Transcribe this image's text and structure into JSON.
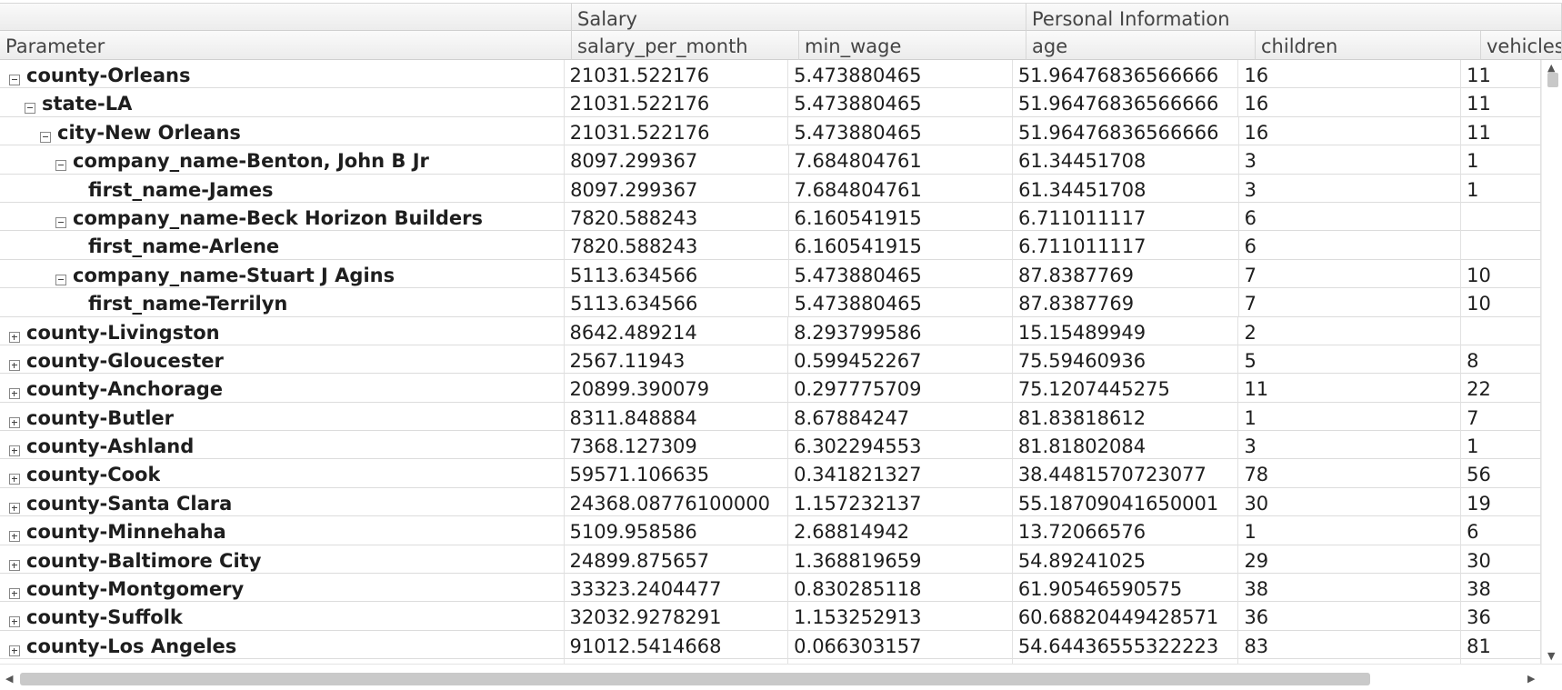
{
  "headers": {
    "groups": [
      {
        "label": "",
        "width": 629
      },
      {
        "label": "Salary",
        "width": 500
      },
      {
        "label": "Personal Information",
        "width": 589
      }
    ],
    "columns": [
      {
        "label": "Parameter",
        "width": 629
      },
      {
        "label": "salary_per_month",
        "width": 250
      },
      {
        "label": "min_wage",
        "width": 250
      },
      {
        "label": "age",
        "width": 252
      },
      {
        "label": "children",
        "width": 248
      },
      {
        "label": "vehicles",
        "width": 89
      }
    ]
  },
  "rows": [
    {
      "label": "county-Orleans",
      "level": 0,
      "toggle": "minus",
      "values": [
        "21031.522176",
        "5.473880465",
        "51.96476836566666",
        "16",
        "11"
      ]
    },
    {
      "label": "state-LA",
      "level": 1,
      "toggle": "minus",
      "values": [
        "21031.522176",
        "5.473880465",
        "51.96476836566666",
        "16",
        "11"
      ]
    },
    {
      "label": "city-New Orleans",
      "level": 2,
      "toggle": "minus",
      "values": [
        "21031.522176",
        "5.473880465",
        "51.96476836566666",
        "16",
        "11"
      ]
    },
    {
      "label": "company_name-Benton, John B Jr",
      "level": 3,
      "toggle": "minus",
      "values": [
        "8097.299367",
        "7.684804761",
        "61.34451708",
        "3",
        "1"
      ]
    },
    {
      "label": "first_name-James",
      "level": 4,
      "toggle": "none",
      "values": [
        "8097.299367",
        "7.684804761",
        "61.34451708",
        "3",
        "1"
      ]
    },
    {
      "label": "company_name-Beck Horizon Builders",
      "level": 3,
      "toggle": "minus",
      "values": [
        "7820.588243",
        "6.160541915",
        "6.711011117",
        "6",
        ""
      ]
    },
    {
      "label": "first_name-Arlene",
      "level": 4,
      "toggle": "none",
      "values": [
        "7820.588243",
        "6.160541915",
        "6.711011117",
        "6",
        ""
      ]
    },
    {
      "label": "company_name-Stuart J Agins",
      "level": 3,
      "toggle": "minus",
      "values": [
        "5113.634566",
        "5.473880465",
        "87.8387769",
        "7",
        "10"
      ]
    },
    {
      "label": "first_name-Terrilyn",
      "level": 4,
      "toggle": "none",
      "values": [
        "5113.634566",
        "5.473880465",
        "87.8387769",
        "7",
        "10"
      ]
    },
    {
      "label": "county-Livingston",
      "level": 0,
      "toggle": "plus",
      "values": [
        "8642.489214",
        "8.293799586",
        "15.15489949",
        "2",
        ""
      ]
    },
    {
      "label": "county-Gloucester",
      "level": 0,
      "toggle": "plus",
      "values": [
        "2567.11943",
        "0.599452267",
        "75.59460936",
        "5",
        "8"
      ]
    },
    {
      "label": "county-Anchorage",
      "level": 0,
      "toggle": "plus",
      "values": [
        "20899.390079",
        "0.297775709",
        "75.1207445275",
        "11",
        "22"
      ]
    },
    {
      "label": "county-Butler",
      "level": 0,
      "toggle": "plus",
      "values": [
        "8311.848884",
        "8.67884247",
        "81.83818612",
        "1",
        "7"
      ]
    },
    {
      "label": "county-Ashland",
      "level": 0,
      "toggle": "plus",
      "values": [
        "7368.127309",
        "6.302294553",
        "81.81802084",
        "3",
        "1"
      ]
    },
    {
      "label": "county-Cook",
      "level": 0,
      "toggle": "plus",
      "values": [
        "59571.106635",
        "0.341821327",
        "38.4481570723077",
        "78",
        "56"
      ]
    },
    {
      "label": "county-Santa Clara",
      "level": 0,
      "toggle": "plus",
      "values": [
        "24368.08776100000",
        "1.157232137",
        "55.18709041650001",
        "30",
        "19"
      ]
    },
    {
      "label": "county-Minnehaha",
      "level": 0,
      "toggle": "plus",
      "values": [
        "5109.958586",
        "2.68814942",
        "13.72066576",
        "1",
        "6"
      ]
    },
    {
      "label": "county-Baltimore City",
      "level": 0,
      "toggle": "plus",
      "values": [
        "24899.875657",
        "1.368819659",
        "54.89241025",
        "29",
        "30"
      ]
    },
    {
      "label": "county-Montgomery",
      "level": 0,
      "toggle": "plus",
      "values": [
        "33323.2404477",
        "0.830285118",
        "61.90546590575",
        "38",
        "38"
      ]
    },
    {
      "label": "county-Suffolk",
      "level": 0,
      "toggle": "plus",
      "values": [
        "32032.9278291",
        "1.153252913",
        "60.68820449428571",
        "36",
        "36"
      ]
    },
    {
      "label": "county-Los Angeles",
      "level": 0,
      "toggle": "plus",
      "values": [
        "91012.5414668",
        "0.066303157",
        "54.64436555322223",
        "83",
        "81"
      ]
    },
    {
      "label": "",
      "level": 0,
      "toggle": "none",
      "values": [
        "",
        "",
        "",
        "",
        ""
      ]
    }
  ]
}
